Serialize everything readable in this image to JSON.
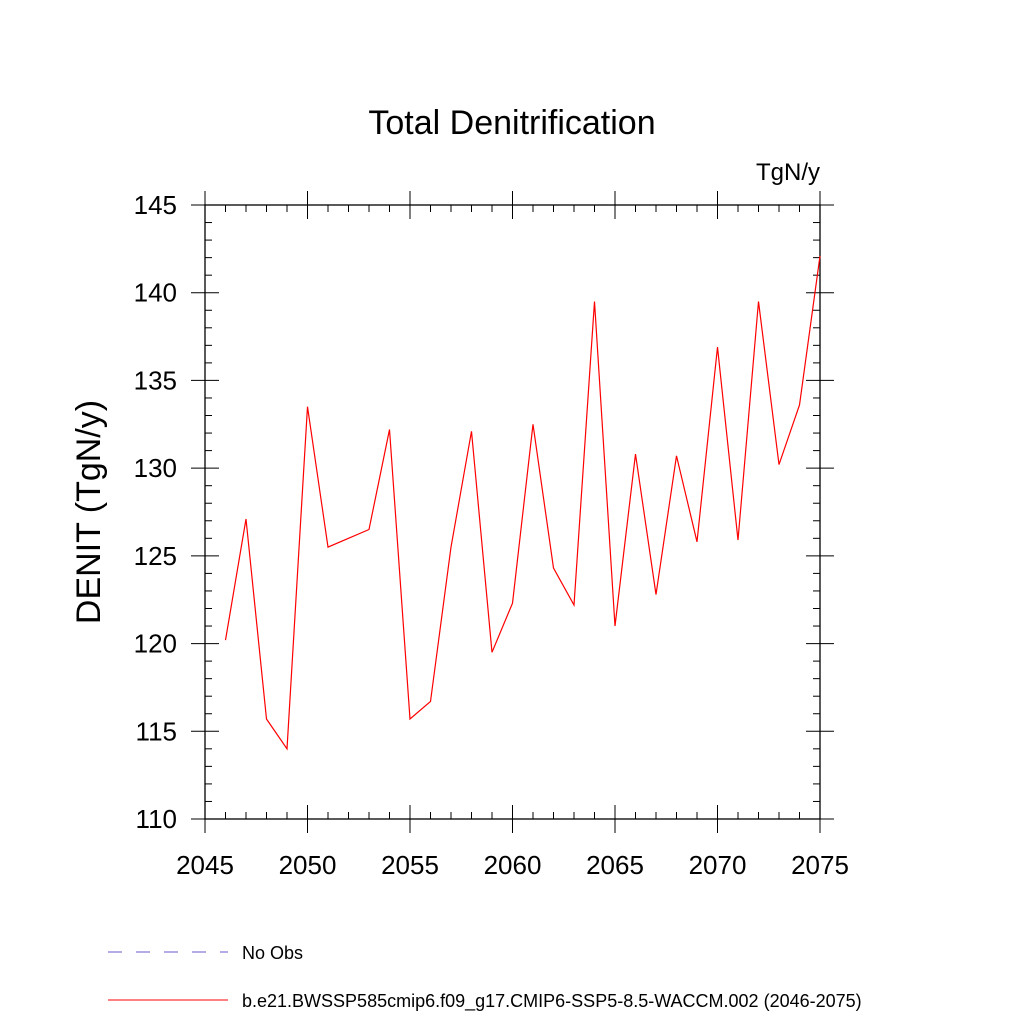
{
  "chart_data": {
    "type": "line",
    "title": "Total Denitrification",
    "units": "TgN/y",
    "xlabel": "",
    "ylabel": "DENIT  (TgN/y)",
    "xlim": [
      2045,
      2075
    ],
    "ylim": [
      110,
      145
    ],
    "xticks": [
      2045,
      2050,
      2055,
      2060,
      2065,
      2070,
      2075
    ],
    "yticks": [
      110,
      115,
      120,
      125,
      130,
      135,
      140,
      145
    ],
    "grid": false,
    "legend_placement": "bottom",
    "series": [
      {
        "name": "b.e21.BWSSP585cmip6.f09_g17.CMIP6-SSP5-8.5-WACCM.002 (2046-2075)",
        "color": "#ff0000",
        "style": "solid",
        "x": [
          2046,
          2047,
          2048,
          2049,
          2050,
          2051,
          2052,
          2053,
          2054,
          2055,
          2056,
          2057,
          2058,
          2059,
          2060,
          2061,
          2062,
          2063,
          2064,
          2065,
          2066,
          2067,
          2068,
          2069,
          2070,
          2071,
          2072,
          2073,
          2074,
          2075
        ],
        "y": [
          120.2,
          127.1,
          115.7,
          114.0,
          133.5,
          125.5,
          126.0,
          126.5,
          132.2,
          115.7,
          116.7,
          125.5,
          132.1,
          119.5,
          122.3,
          132.5,
          124.3,
          122.2,
          139.5,
          121.0,
          130.8,
          122.8,
          130.7,
          125.8,
          136.9,
          125.9,
          139.5,
          130.2,
          133.6,
          142.1
        ]
      }
    ],
    "legend": [
      {
        "label": "No Obs",
        "color": "#6a5acd",
        "style": "dashed"
      },
      {
        "label": "b.e21.BWSSP585cmip6.f09_g17.CMIP6-SSP5-8.5-WACCM.002 (2046-2075)",
        "color": "#ff0000",
        "style": "solid"
      }
    ]
  }
}
